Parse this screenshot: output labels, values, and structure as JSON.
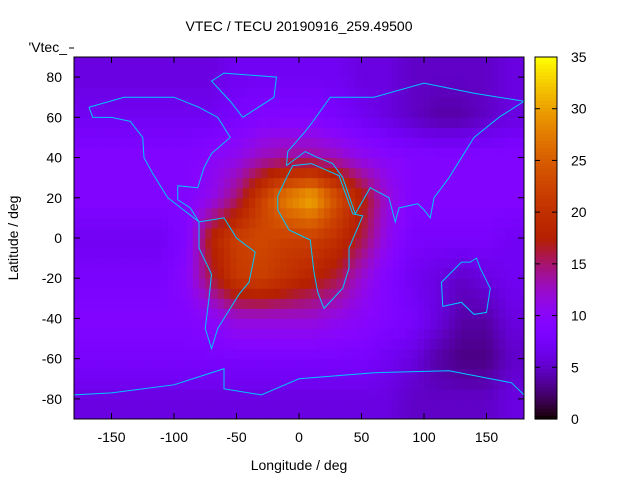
{
  "chart_data": {
    "type": "heatmap",
    "title": "VTEC / TECU 20190916_259.49500",
    "xlabel": "Longitude / deg",
    "ylabel": "Latitude / deg",
    "key_label": "'Vtec_",
    "xlim": [
      -180,
      180
    ],
    "ylim": [
      -90,
      90
    ],
    "zlim": [
      0,
      35
    ],
    "xticks": [
      "-150",
      "-100",
      "-50",
      "0",
      "50",
      "100",
      "150"
    ],
    "xtick_values": [
      -150,
      -100,
      -50,
      0,
      50,
      100,
      150
    ],
    "yticks": [
      "80",
      "60",
      "40",
      "20",
      "0",
      "-20",
      "-40",
      "-60",
      "-80"
    ],
    "ytick_values": [
      80,
      60,
      40,
      20,
      0,
      -20,
      -40,
      -60,
      -80
    ],
    "cbticks": [
      "0",
      "5",
      "10",
      "15",
      "20",
      "25",
      "30",
      "35"
    ],
    "cbtick_values": [
      0,
      5,
      10,
      15,
      20,
      25,
      30,
      35
    ],
    "grid_lon_centers": [
      -170,
      -150,
      -130,
      -110,
      -90,
      -70,
      -50,
      -30,
      -10,
      10,
      30,
      50,
      70,
      90,
      110,
      130,
      150,
      170
    ],
    "grid_lat_centers": [
      80,
      60,
      40,
      20,
      0,
      -20,
      -40,
      -60,
      -80
    ],
    "values": [
      [
        6,
        6,
        6,
        6,
        6,
        6,
        7,
        7,
        7,
        7,
        7,
        6,
        6,
        5,
        5,
        5,
        5,
        6
      ],
      [
        7,
        7,
        7,
        7,
        7,
        7,
        8,
        9,
        9,
        9,
        8,
        7,
        6,
        5,
        4,
        4,
        5,
        6
      ],
      [
        9,
        9,
        9,
        9,
        9,
        10,
        11,
        13,
        14,
        14,
        13,
        11,
        10,
        9,
        9,
        9,
        9,
        9
      ],
      [
        9,
        9,
        9,
        9,
        9,
        11,
        15,
        22,
        28,
        31,
        24,
        18,
        12,
        9,
        9,
        9,
        9,
        9
      ],
      [
        7,
        7,
        7,
        7,
        9,
        18,
        22,
        23,
        22,
        22,
        20,
        16,
        11,
        8,
        8,
        8,
        8,
        7
      ],
      [
        8,
        8,
        8,
        8,
        10,
        16,
        21,
        22,
        20,
        18,
        16,
        12,
        9,
        7,
        6,
        5,
        6,
        7
      ],
      [
        9,
        9,
        9,
        9,
        9,
        10,
        12,
        12,
        12,
        12,
        11,
        10,
        9,
        8,
        6,
        4,
        4,
        6
      ],
      [
        8,
        8,
        8,
        8,
        8,
        8,
        8,
        8,
        8,
        8,
        8,
        8,
        7,
        6,
        4,
        3,
        3,
        5
      ],
      [
        6,
        6,
        6,
        6,
        6,
        6,
        6,
        6,
        6,
        6,
        6,
        6,
        6,
        5,
        5,
        5,
        5,
        6
      ]
    ]
  }
}
